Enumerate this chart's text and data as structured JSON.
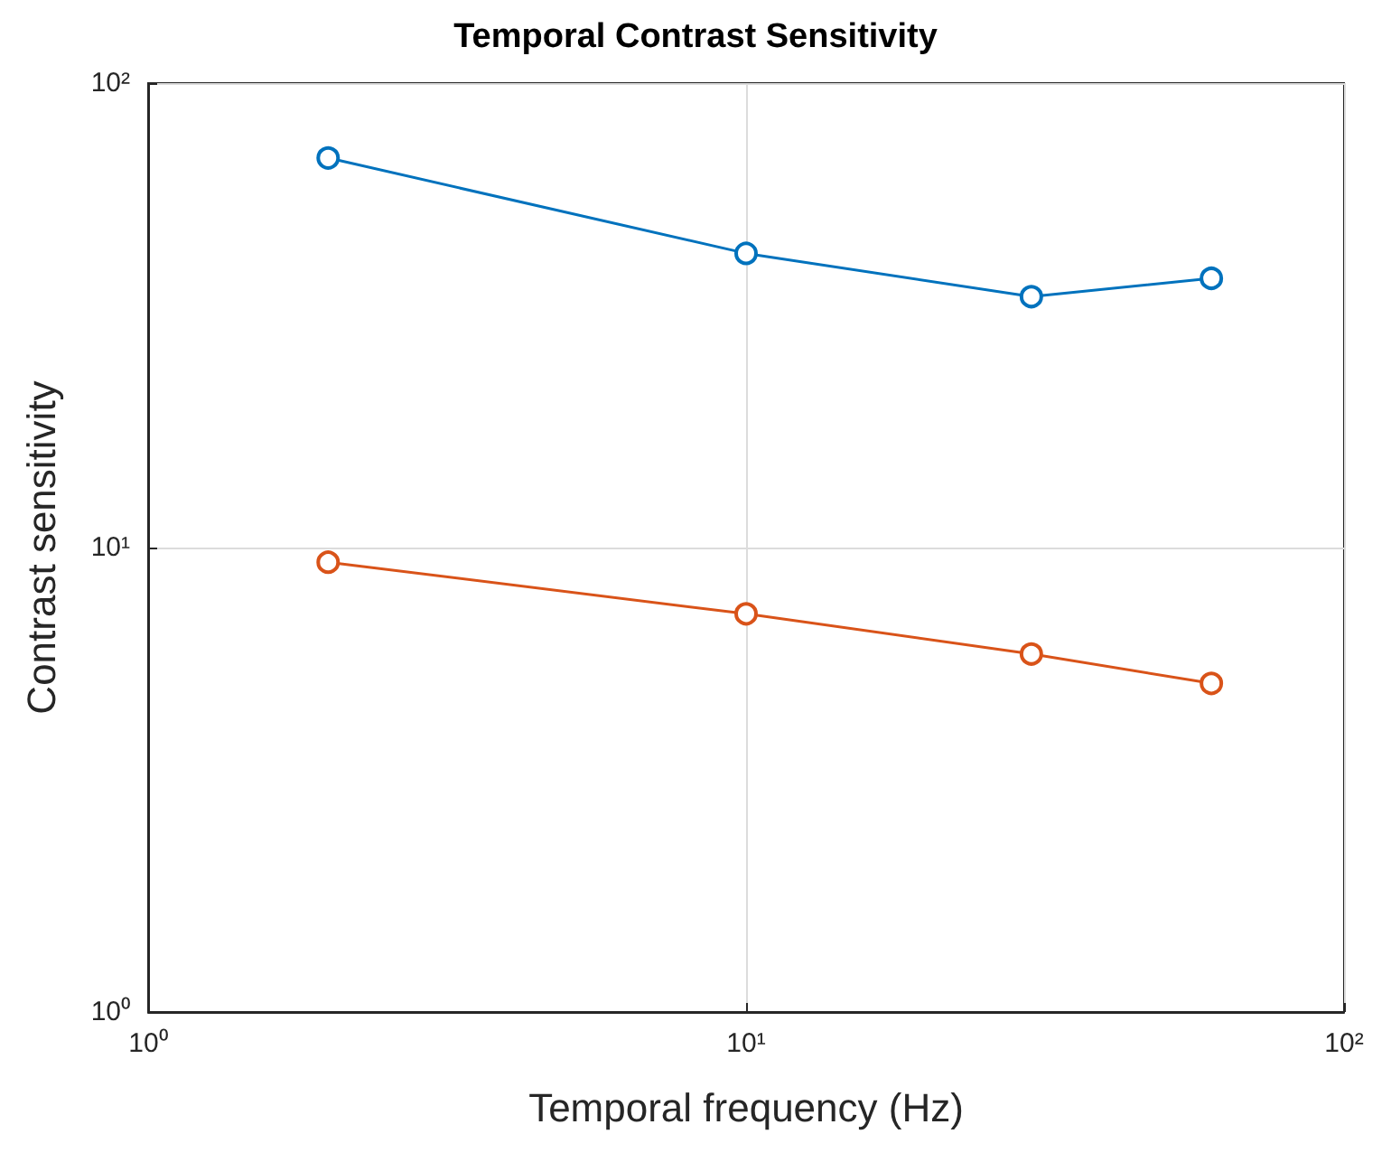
{
  "chart_data": {
    "type": "line",
    "title": "Temporal Contrast Sensitivity",
    "xlabel": "Temporal frequency (Hz)",
    "ylabel": "Contrast sensitivity",
    "x": [
      2,
      10,
      30,
      60
    ],
    "series": [
      {
        "color": "#0072bd",
        "values": [
          69,
          43,
          34.7,
          38
        ]
      },
      {
        "color": "#d95319",
        "values": [
          9.3,
          7.2,
          5.9,
          5.1
        ]
      }
    ],
    "log": "xy",
    "xlim": [
      1,
      100
    ],
    "ylim": [
      1,
      100
    ],
    "xticks": [
      {
        "value": 1,
        "label": "10⁰"
      },
      {
        "value": 10,
        "label": "10¹"
      },
      {
        "value": 100,
        "label": "10²"
      }
    ],
    "yticks": [
      {
        "value": 1,
        "label": "10⁰"
      },
      {
        "value": 10,
        "label": "10¹"
      },
      {
        "value": 100,
        "label": "10²"
      }
    ],
    "grid": true,
    "marker": "circle",
    "line_style": "solid"
  }
}
